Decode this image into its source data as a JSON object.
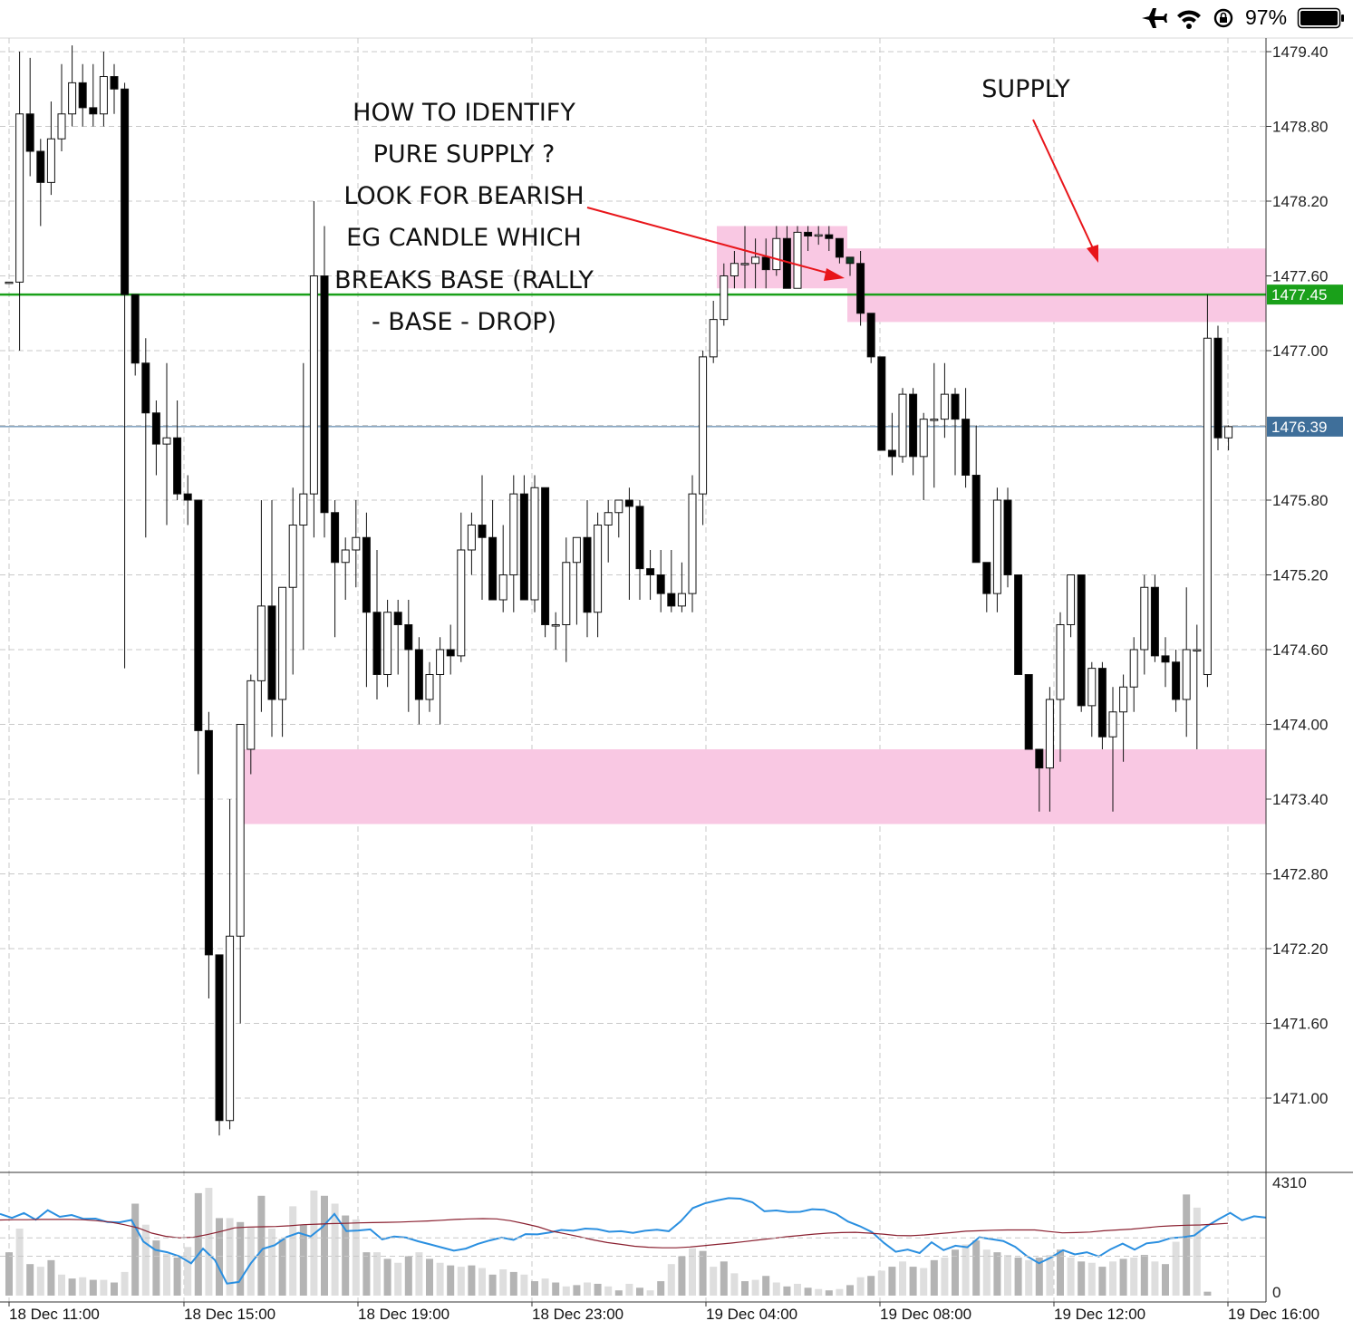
{
  "status_bar": {
    "icons": [
      "airplane-icon",
      "wifi-icon",
      "orientation-lock-icon",
      "battery-icon"
    ],
    "battery_percent": "97%"
  },
  "chart_data": {
    "type": "candlestick",
    "y_ticks": [
      "1479.40",
      "1478.80",
      "1478.20",
      "1477.60",
      "1477.00",
      "1476.39",
      "1475.80",
      "1475.20",
      "1474.60",
      "1474.00",
      "1473.40",
      "1472.80",
      "1472.20",
      "1471.60",
      "1471.00"
    ],
    "ylim": [
      1470.6,
      1479.5
    ],
    "x_ticks": [
      "18 Dec 11:00",
      "18 Dec 15:00",
      "18 Dec 19:00",
      "18 Dec 23:00",
      "19 Dec 04:00",
      "19 Dec 08:00",
      "19 Dec 12:00",
      "19 Dec 16:00"
    ],
    "levels": [
      {
        "label": "1477.45",
        "value": 1477.45,
        "color": "#1aa01a"
      },
      {
        "label": "1476.39",
        "value": 1476.39,
        "color": "#3f6f9a"
      }
    ],
    "zones": [
      {
        "name": "base",
        "y_from": 1477.5,
        "y_to": 1478.0
      },
      {
        "name": "supply",
        "y_from": 1477.23,
        "y_to": 1477.82
      },
      {
        "name": "demand",
        "y_from": 1473.2,
        "y_to": 1473.8
      }
    ],
    "candles": [
      [
        1477.55,
        1477.55,
        1477.55,
        1477.55
      ],
      [
        1477.55,
        1479.4,
        1477.0,
        1478.9
      ],
      [
        1478.9,
        1479.35,
        1478.4,
        1478.6
      ],
      [
        1478.6,
        1478.7,
        1478.0,
        1478.35
      ],
      [
        1478.35,
        1479.0,
        1478.25,
        1478.7
      ],
      [
        1478.7,
        1479.3,
        1478.6,
        1478.9
      ],
      [
        1478.9,
        1479.45,
        1478.8,
        1479.15
      ],
      [
        1479.15,
        1479.3,
        1478.8,
        1478.95
      ],
      [
        1478.95,
        1479.3,
        1478.8,
        1478.9
      ],
      [
        1478.9,
        1479.4,
        1478.8,
        1479.2
      ],
      [
        1479.2,
        1479.3,
        1478.9,
        1479.1
      ],
      [
        1479.1,
        1479.15,
        1474.45,
        1477.45
      ],
      [
        1477.45,
        1477.45,
        1476.8,
        1476.9
      ],
      [
        1476.9,
        1477.1,
        1475.5,
        1476.5
      ],
      [
        1476.5,
        1476.6,
        1476.0,
        1476.25
      ],
      [
        1476.25,
        1476.9,
        1475.6,
        1476.3
      ],
      [
        1476.3,
        1476.6,
        1475.8,
        1475.85
      ],
      [
        1475.85,
        1476.0,
        1475.6,
        1475.8
      ],
      [
        1475.8,
        1475.8,
        1473.6,
        1473.95
      ],
      [
        1473.95,
        1474.1,
        1471.8,
        1472.15
      ],
      [
        1472.15,
        1472.15,
        1470.7,
        1470.82
      ],
      [
        1470.82,
        1473.4,
        1470.75,
        1472.3
      ],
      [
        1472.3,
        1474.0,
        1471.6,
        1474.0
      ],
      [
        1473.8,
        1474.4,
        1473.6,
        1474.35
      ],
      [
        1474.35,
        1475.8,
        1474.1,
        1474.95
      ],
      [
        1474.95,
        1475.8,
        1473.9,
        1474.2
      ],
      [
        1474.2,
        1475.1,
        1473.9,
        1475.1
      ],
      [
        1475.1,
        1475.9,
        1474.4,
        1475.6
      ],
      [
        1475.6,
        1476.9,
        1474.6,
        1475.85
      ],
      [
        1475.85,
        1478.2,
        1475.5,
        1477.6
      ],
      [
        1477.6,
        1478.0,
        1475.5,
        1475.7
      ],
      [
        1475.7,
        1475.8,
        1474.7,
        1475.3
      ],
      [
        1475.3,
        1475.5,
        1475.0,
        1475.4
      ],
      [
        1475.4,
        1475.8,
        1475.1,
        1475.5
      ],
      [
        1475.5,
        1475.7,
        1474.3,
        1474.9
      ],
      [
        1474.9,
        1475.4,
        1474.2,
        1474.4
      ],
      [
        1474.4,
        1475.0,
        1474.3,
        1474.9
      ],
      [
        1474.9,
        1475.0,
        1474.4,
        1474.8
      ],
      [
        1474.8,
        1475.0,
        1474.1,
        1474.6
      ],
      [
        1474.6,
        1474.7,
        1474.0,
        1474.2
      ],
      [
        1474.2,
        1474.5,
        1474.1,
        1474.4
      ],
      [
        1474.4,
        1474.7,
        1474.0,
        1474.6
      ],
      [
        1474.6,
        1474.8,
        1474.4,
        1474.55
      ],
      [
        1474.55,
        1475.7,
        1474.5,
        1475.4
      ],
      [
        1475.4,
        1475.7,
        1475.2,
        1475.6
      ],
      [
        1475.6,
        1476.0,
        1475.0,
        1475.5
      ],
      [
        1475.5,
        1475.8,
        1475.0,
        1475.0
      ],
      [
        1475.0,
        1475.6,
        1474.9,
        1475.2
      ],
      [
        1475.2,
        1476.0,
        1474.9,
        1475.85
      ],
      [
        1475.85,
        1476.0,
        1475.0,
        1475.0
      ],
      [
        1475.0,
        1476.0,
        1474.9,
        1475.9
      ],
      [
        1475.9,
        1475.9,
        1474.7,
        1474.8
      ],
      [
        1474.8,
        1474.9,
        1474.6,
        1474.8
      ],
      [
        1474.8,
        1475.5,
        1474.5,
        1475.3
      ],
      [
        1475.3,
        1475.5,
        1474.8,
        1475.5
      ],
      [
        1475.5,
        1475.8,
        1474.7,
        1474.9
      ],
      [
        1474.9,
        1475.7,
        1474.7,
        1475.6
      ],
      [
        1475.6,
        1475.8,
        1475.3,
        1475.7
      ],
      [
        1475.7,
        1475.8,
        1475.5,
        1475.8
      ],
      [
        1475.8,
        1475.9,
        1475.0,
        1475.75
      ],
      [
        1475.75,
        1475.8,
        1475.0,
        1475.25
      ],
      [
        1475.25,
        1475.4,
        1475.0,
        1475.2
      ],
      [
        1475.2,
        1475.4,
        1474.9,
        1475.05
      ],
      [
        1475.05,
        1475.4,
        1474.9,
        1474.95
      ],
      [
        1474.95,
        1475.3,
        1474.9,
        1475.05
      ],
      [
        1475.05,
        1476.0,
        1474.9,
        1475.85
      ],
      [
        1475.85,
        1477.0,
        1475.6,
        1476.95
      ],
      [
        1476.95,
        1477.4,
        1476.9,
        1477.25
      ],
      [
        1477.25,
        1477.7,
        1477.2,
        1477.6
      ],
      [
        1477.6,
        1477.8,
        1477.5,
        1477.7
      ],
      [
        1477.7,
        1478.0,
        1477.5,
        1477.7
      ],
      [
        1477.7,
        1477.9,
        1477.5,
        1477.75
      ],
      [
        1477.75,
        1477.9,
        1477.5,
        1477.65
      ],
      [
        1477.65,
        1478.0,
        1477.6,
        1477.9
      ],
      [
        1477.9,
        1478.0,
        1477.5,
        1477.5
      ],
      [
        1477.5,
        1478.0,
        1477.5,
        1477.95
      ],
      [
        1477.95,
        1478.0,
        1477.8,
        1477.92
      ],
      [
        1477.92,
        1478.0,
        1477.85,
        1477.93
      ],
      [
        1477.93,
        1478.0,
        1477.8,
        1477.9
      ],
      [
        1477.9,
        1477.9,
        1477.7,
        1477.75
      ],
      [
        1477.75,
        1477.75,
        1477.6,
        1477.7
      ],
      [
        1477.7,
        1477.8,
        1477.2,
        1477.3
      ],
      [
        1477.3,
        1477.3,
        1476.9,
        1476.95
      ],
      [
        1476.95,
        1476.95,
        1476.2,
        1476.2
      ],
      [
        1476.2,
        1476.5,
        1476.0,
        1476.15
      ],
      [
        1476.15,
        1476.7,
        1476.1,
        1476.65
      ],
      [
        1476.65,
        1476.7,
        1476.0,
        1476.15
      ],
      [
        1476.15,
        1476.5,
        1475.8,
        1476.45
      ],
      [
        1476.45,
        1476.9,
        1475.9,
        1476.45
      ],
      [
        1476.45,
        1476.9,
        1476.3,
        1476.65
      ],
      [
        1476.65,
        1476.7,
        1476.0,
        1476.45
      ],
      [
        1476.45,
        1476.7,
        1475.9,
        1476.0
      ],
      [
        1476.0,
        1476.4,
        1475.3,
        1475.3
      ],
      [
        1475.3,
        1475.3,
        1474.9,
        1475.05
      ],
      [
        1475.05,
        1475.9,
        1474.9,
        1475.8
      ],
      [
        1475.8,
        1475.9,
        1475.1,
        1475.2
      ],
      [
        1475.2,
        1475.2,
        1474.4,
        1474.4
      ],
      [
        1474.4,
        1474.4,
        1473.8,
        1473.8
      ],
      [
        1473.8,
        1473.8,
        1473.3,
        1473.65
      ],
      [
        1473.65,
        1474.3,
        1473.3,
        1474.2
      ],
      [
        1474.2,
        1474.9,
        1473.7,
        1474.8
      ],
      [
        1474.8,
        1475.2,
        1474.7,
        1475.2
      ],
      [
        1475.2,
        1475.2,
        1474.1,
        1474.15
      ],
      [
        1474.15,
        1474.5,
        1473.9,
        1474.45
      ],
      [
        1474.45,
        1474.5,
        1473.8,
        1473.9
      ],
      [
        1473.9,
        1474.3,
        1473.3,
        1474.1
      ],
      [
        1474.1,
        1474.4,
        1473.7,
        1474.3
      ],
      [
        1474.3,
        1474.7,
        1474.1,
        1474.6
      ],
      [
        1474.6,
        1475.2,
        1474.4,
        1475.1
      ],
      [
        1475.1,
        1475.2,
        1474.5,
        1474.55
      ],
      [
        1474.55,
        1474.7,
        1474.3,
        1474.5
      ],
      [
        1474.5,
        1474.6,
        1474.1,
        1474.2
      ],
      [
        1474.2,
        1475.1,
        1473.9,
        1474.6
      ],
      [
        1474.6,
        1474.8,
        1473.8,
        1474.6
      ],
      [
        1474.4,
        1477.45,
        1474.3,
        1477.1
      ],
      [
        1477.1,
        1477.2,
        1476.2,
        1476.3
      ],
      [
        1476.3,
        1476.4,
        1476.2,
        1476.39
      ]
    ],
    "volume_axis_ticks": [
      "4310",
      "0"
    ],
    "volume_max": 4310,
    "volume": [
      1650,
      2550,
      1200,
      1100,
      1350,
      800,
      650,
      700,
      600,
      600,
      500,
      900,
      3500,
      2700,
      2100,
      1600,
      1450,
      1850,
      3900,
      4100,
      2950,
      2950,
      2800,
      2600,
      3800,
      2550,
      2150,
      3400,
      2700,
      4000,
      3800,
      3500,
      3050,
      2900,
      1650,
      1650,
      1400,
      1250,
      1500,
      1650,
      1400,
      1250,
      1150,
      1100,
      1150,
      1050,
      800,
      1000,
      900,
      800,
      550,
      650,
      500,
      350,
      400,
      500,
      450,
      350,
      200,
      450,
      300,
      200,
      550,
      1200,
      1500,
      1800,
      1700,
      1100,
      1300,
      850,
      550,
      600,
      750,
      500,
      350,
      450,
      300,
      250,
      200,
      250,
      400,
      700,
      750,
      950,
      1100,
      1300,
      1100,
      1050,
      1350,
      1450,
      1750,
      1950,
      2100,
      1750,
      1650,
      1550,
      1450,
      1350,
      1450,
      1550,
      1750,
      1450,
      1300,
      1250,
      1100,
      1300,
      1400,
      1450,
      1550,
      1300,
      1200,
      2050,
      3850,
      3350,
      150
    ],
    "volume_ma": [
      3110,
      2960,
      3140,
      2890,
      3250,
      3000,
      3070,
      2920,
      2930,
      2800,
      2790,
      2880,
      2060,
      1740,
      1650,
      1500,
      1230,
      1790,
      1350,
      460,
      520,
      1230,
      1780,
      1920,
      2230,
      2390,
      2250,
      2610,
      3110,
      2460,
      2480,
      2520,
      2140,
      2250,
      2210,
      2070,
      1950,
      1830,
      1710,
      1790,
      1970,
      2100,
      2210,
      2120,
      2340,
      2330,
      2400,
      2500,
      2470,
      2550,
      2530,
      2430,
      2450,
      2390,
      2470,
      2510,
      2450,
      2830,
      3330,
      3510,
      3620,
      3710,
      3690,
      3550,
      3210,
      3240,
      3180,
      3190,
      3290,
      3270,
      3110,
      2820,
      2640,
      2420,
      2010,
      1670,
      1750,
      1620,
      2030,
      1730,
      1900,
      1840,
      2220,
      2150,
      2080,
      1860,
      1500,
      1230,
      1450,
      1730,
      1570,
      1650,
      1490,
      1770,
      1980,
      1750,
      1990,
      2040,
      2190,
      2220,
      2290,
      2630,
      2900,
      3150,
      2870,
      3020,
      2970
    ],
    "volume_sma": [
      2880,
      2890,
      2890,
      2900,
      2900,
      2900,
      2890,
      2850,
      2800,
      2700,
      2580,
      2380,
      2260,
      2200,
      2220,
      2320,
      2440,
      2580,
      2610,
      2620,
      2630,
      2660,
      2700,
      2720,
      2740,
      2750,
      2770,
      2780,
      2790,
      2800,
      2820,
      2840,
      2870,
      2900,
      2920,
      2930,
      2920,
      2850,
      2740,
      2620,
      2450,
      2350,
      2240,
      2120,
      2020,
      1950,
      1880,
      1840,
      1820,
      1820,
      1850,
      1900,
      1950,
      2000,
      2060,
      2120,
      2180,
      2240,
      2290,
      2340,
      2380,
      2400,
      2410,
      2380,
      2340,
      2290,
      2280,
      2310,
      2360,
      2400,
      2450,
      2470,
      2490,
      2500,
      2500,
      2500,
      2440,
      2390,
      2400,
      2420,
      2470,
      2500,
      2530,
      2580,
      2630,
      2660,
      2680,
      2690,
      2720,
      2750
    ]
  },
  "annotations": {
    "question_lines": [
      "HOW TO IDENTIFY",
      "PURE SUPPLY ?",
      "LOOK FOR BEARISH",
      "EG CANDLE WHICH",
      "BREAKS BASE (RALLY",
      "- BASE - DROP)"
    ],
    "supply_label": "SUPPLY"
  },
  "colors": {
    "zone": "#f9c8e3",
    "green_level": "#1aa01a",
    "blue_level": "#3f6f9a",
    "arrow": "#e8151a",
    "breakout_candle": "#0d3b22",
    "volume_bar_dark": "#b4b4b4",
    "volume_bar_light": "#dedede",
    "indicator_line": "#2a8fe0",
    "indicator_ma": "#8a2030"
  }
}
